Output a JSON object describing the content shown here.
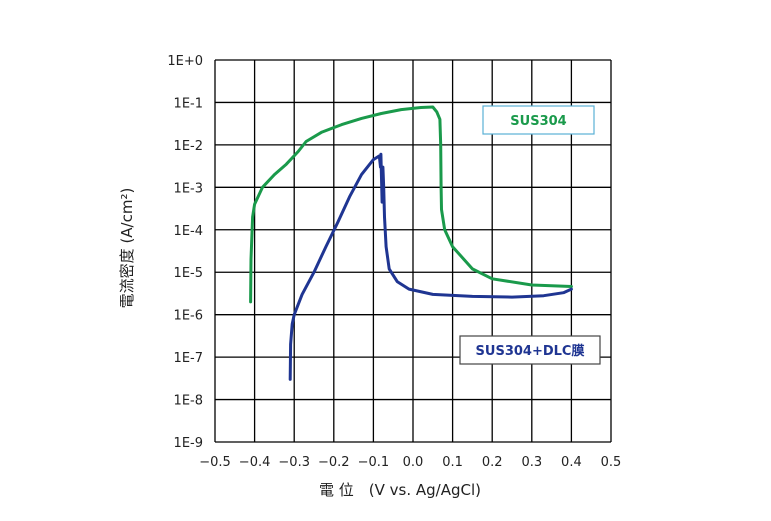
{
  "chart_data": {
    "type": "line",
    "xlabel": "電 位　(V vs. Ag/AgCl)",
    "ylabel": "電流密度 (A/cm²)",
    "xlim": [
      -0.5,
      0.5
    ],
    "ylim_log10": [
      -9,
      0
    ],
    "y_scale": "log",
    "grid": true,
    "x_ticks": [
      -0.5,
      -0.4,
      -0.3,
      -0.2,
      -0.1,
      0.0,
      0.1,
      0.2,
      0.3,
      0.4,
      0.5
    ],
    "x_tick_labels": [
      "−0.5",
      "−0.4",
      "−0.3",
      "−0.2",
      "−0.1",
      "0.0",
      "0.1",
      "0.2",
      "0.3",
      "0.4",
      "0.5"
    ],
    "y_tick_labels": [
      "1E+0",
      "1E-1",
      "1E-2",
      "1E-3",
      "1E-4",
      "1E-5",
      "1E-6",
      "1E-7",
      "1E-8",
      "1E-9"
    ],
    "series": [
      {
        "name": "SUS304",
        "color": "#1a9a4b",
        "points": [
          [
            -0.41,
            2e-06
          ],
          [
            -0.409,
            2e-05
          ],
          [
            -0.405,
            0.0002
          ],
          [
            -0.4,
            0.0004
          ],
          [
            -0.38,
            0.001
          ],
          [
            -0.35,
            0.002
          ],
          [
            -0.32,
            0.0035
          ],
          [
            -0.29,
            0.007
          ],
          [
            -0.27,
            0.012
          ],
          [
            -0.23,
            0.02
          ],
          [
            -0.18,
            0.03
          ],
          [
            -0.13,
            0.042
          ],
          [
            -0.08,
            0.055
          ],
          [
            -0.03,
            0.068
          ],
          [
            0.02,
            0.076
          ],
          [
            0.05,
            0.078
          ],
          [
            0.06,
            0.06
          ],
          [
            0.068,
            0.04
          ],
          [
            0.07,
            0.01
          ],
          [
            0.071,
            0.001
          ],
          [
            0.072,
            0.0003
          ],
          [
            0.08,
            0.0001
          ],
          [
            0.1,
            4e-05
          ],
          [
            0.15,
            1.2e-05
          ],
          [
            0.2,
            7e-06
          ],
          [
            0.3,
            5e-06
          ],
          [
            0.4,
            4.6e-06
          ]
        ]
      },
      {
        "name": "SUS304+DLC膜",
        "color": "#1f3592",
        "points": [
          [
            -0.31,
            3e-08
          ],
          [
            -0.309,
            2e-07
          ],
          [
            -0.305,
            6e-07
          ],
          [
            -0.3,
            1e-06
          ],
          [
            -0.28,
            3e-06
          ],
          [
            -0.25,
            1e-05
          ],
          [
            -0.22,
            4e-05
          ],
          [
            -0.19,
            0.00015
          ],
          [
            -0.16,
            0.0006
          ],
          [
            -0.13,
            0.002
          ],
          [
            -0.1,
            0.0045
          ],
          [
            -0.085,
            0.0055
          ],
          [
            -0.082,
            0.003
          ],
          [
            -0.081,
            0.006
          ],
          [
            -0.078,
            0.00045
          ],
          [
            -0.076,
            0.003
          ],
          [
            -0.074,
            0.001
          ],
          [
            -0.072,
            0.0002
          ],
          [
            -0.068,
            4e-05
          ],
          [
            -0.06,
            1.2e-05
          ],
          [
            -0.04,
            6e-06
          ],
          [
            -0.01,
            4e-06
          ],
          [
            0.05,
            3e-06
          ],
          [
            0.15,
            2.7e-06
          ],
          [
            0.25,
            2.6e-06
          ],
          [
            0.33,
            2.8e-06
          ],
          [
            0.38,
            3.3e-06
          ],
          [
            0.4,
            4e-06
          ]
        ]
      }
    ]
  }
}
